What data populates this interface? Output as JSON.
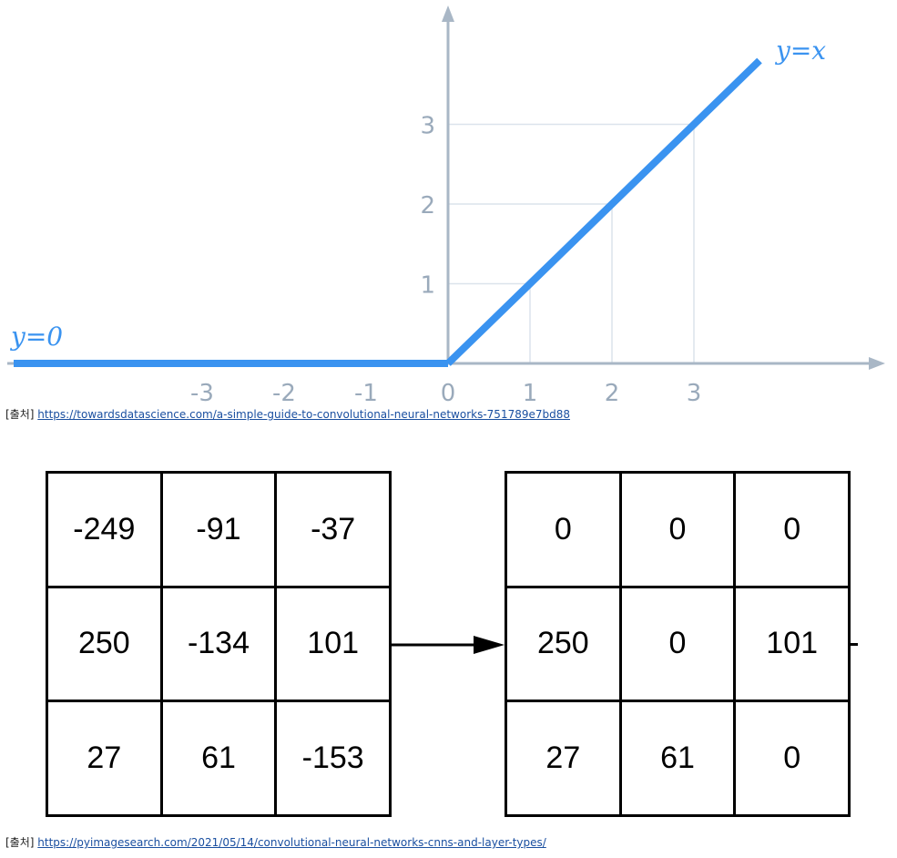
{
  "chart_data": {
    "type": "line",
    "series": [
      {
        "name": "y=0",
        "x": [
          -5.3,
          0
        ],
        "y": [
          0,
          0
        ]
      },
      {
        "name": "y=x",
        "x": [
          0,
          3.8
        ],
        "y": [
          0,
          3.8
        ]
      }
    ],
    "x_ticks": [
      "-3",
      "-2",
      "-1",
      "0",
      "1",
      "2",
      "3"
    ],
    "y_ticks": [
      "1",
      "2",
      "3"
    ],
    "labels": {
      "left": "y=0",
      "right": "y=x"
    },
    "guide_points": [
      [
        1,
        1
      ],
      [
        2,
        2
      ],
      [
        3,
        3
      ]
    ],
    "xlim": [
      -5.4,
      5.3
    ],
    "ylim": [
      0,
      4.4
    ],
    "grid": false,
    "color": "#3a93f0",
    "axis_color": "#a9b7c6"
  },
  "sources": {
    "prefix": "[출처]",
    "first_url": "https://towardsdatascience.com/a-simple-guide-to-convolutional-neural-networks-751789e7bd88",
    "second_url": "https://pyimagesearch.com/2021/05/14/convolutional-neural-networks-cnns-and-layer-types/"
  },
  "matrices": {
    "input": [
      [
        "-249",
        "-91",
        "-37"
      ],
      [
        "250",
        "-134",
        "101"
      ],
      [
        "27",
        "61",
        "-153"
      ]
    ],
    "output": [
      [
        "0",
        "0",
        "0"
      ],
      [
        "250",
        "0",
        "101"
      ],
      [
        "27",
        "61",
        "0"
      ]
    ]
  }
}
